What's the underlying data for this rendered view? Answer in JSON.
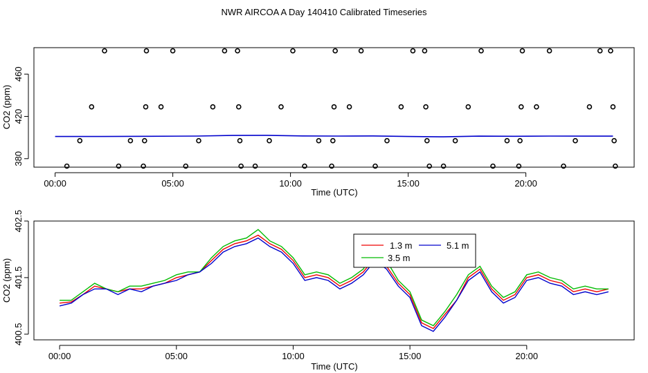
{
  "title": "NWR AIRCOA A  Day 140410  Calibrated Timeseries",
  "chart_data": [
    {
      "type": "scatter",
      "xlabel": "Time (UTC)",
      "ylabel": "CO2 (ppm)",
      "xlim": [
        -0.9,
        24.6
      ],
      "ylim": [
        372,
        485
      ],
      "xticks": [
        0,
        5,
        10,
        15,
        20
      ],
      "xtick_labels": [
        "00:00",
        "05:00",
        "10:00",
        "15:00",
        "20:00"
      ],
      "yticks": [
        380,
        420,
        460
      ],
      "ytick_labels": [
        "380",
        "420",
        "460"
      ],
      "grid": false,
      "legend": "none",
      "points": {
        "name": "",
        "style": "open-circle",
        "color": "#000000",
        "x": [
          0.5,
          1.05,
          1.55,
          2.1,
          2.7,
          3.2,
          3.75,
          3.8,
          3.85,
          3.88,
          4.5,
          5.0,
          5.55,
          6.1,
          6.7,
          7.2,
          7.75,
          7.8,
          7.85,
          7.9,
          8.5,
          9.1,
          9.6,
          10.1,
          10.6,
          11.2,
          11.75,
          11.8,
          11.85,
          11.9,
          12.5,
          13.0,
          13.6,
          14.1,
          14.7,
          15.2,
          15.7,
          15.75,
          15.8,
          15.9,
          16.5,
          17.0,
          17.55,
          18.1,
          18.6,
          19.2,
          19.7,
          19.75,
          19.8,
          19.85,
          20.45,
          21.0,
          21.6,
          22.1,
          22.7,
          23.15,
          23.6,
          23.7,
          23.75,
          23.8
        ],
        "y": [
          373,
          397,
          429,
          482,
          373,
          397,
          373,
          397,
          429,
          482,
          429,
          482,
          373,
          397,
          429,
          482,
          482,
          429,
          397,
          373,
          373,
          397,
          429,
          482,
          373,
          397,
          373,
          397,
          429,
          482,
          429,
          482,
          373,
          397,
          429,
          482,
          482,
          429,
          397,
          373,
          373,
          397,
          429,
          482,
          373,
          397,
          373,
          397,
          429,
          482,
          429,
          482,
          373,
          397,
          429,
          482,
          482,
          429,
          397,
          373
        ]
      },
      "series": [
        {
          "name": "",
          "color": "#0000cc",
          "x": [
            0,
            2,
            4,
            6,
            7.5,
            9,
            10.5,
            12,
            13.5,
            15,
            16.5,
            18,
            19.5,
            21,
            22.5,
            23.7
          ],
          "y": [
            401,
            401,
            401.2,
            401.4,
            402,
            402.1,
            401.5,
            401.4,
            401.5,
            401,
            400.7,
            401.3,
            401.2,
            401.4,
            401.3,
            401.3
          ]
        }
      ]
    },
    {
      "type": "line",
      "xlabel": "Time (UTC)",
      "ylabel": "CO2 (ppm)",
      "xlim": [
        -1.1,
        24.6
      ],
      "ylim": [
        400.4,
        402.5
      ],
      "xticks": [
        0,
        5,
        10,
        15,
        20
      ],
      "xtick_labels": [
        "00:00",
        "05:00",
        "10:00",
        "15:00",
        "20:00"
      ],
      "yticks": [
        400.5,
        401.5,
        402.5
      ],
      "ytick_labels": [
        "400.5",
        "401.5",
        "402.5"
      ],
      "grid": false,
      "legend": "top-center",
      "x": [
        0,
        0.5,
        1,
        1.5,
        2,
        2.5,
        3,
        3.5,
        4,
        4.5,
        5,
        5.5,
        6,
        6.5,
        7,
        7.5,
        8,
        8.5,
        9,
        9.5,
        10,
        10.5,
        11,
        11.5,
        12,
        12.5,
        13,
        13.5,
        14,
        14.5,
        15,
        15.5,
        16,
        16.5,
        17,
        17.5,
        18,
        18.5,
        19,
        19.5,
        20,
        20.5,
        21,
        21.5,
        22,
        22.5,
        23,
        23.5
      ],
      "series": [
        {
          "name": "1.3 m",
          "color": "#ee0000",
          "values": [
            401.05,
            401.07,
            401.2,
            401.35,
            401.3,
            401.25,
            401.3,
            401.3,
            401.35,
            401.4,
            401.5,
            401.55,
            401.6,
            401.8,
            402.0,
            402.1,
            402.15,
            402.25,
            402.1,
            402.0,
            401.8,
            401.5,
            401.55,
            401.5,
            401.35,
            401.45,
            401.6,
            401.85,
            401.7,
            401.4,
            401.2,
            400.7,
            400.6,
            400.85,
            401.1,
            401.5,
            401.65,
            401.3,
            401.1,
            401.2,
            401.5,
            401.55,
            401.45,
            401.4,
            401.25,
            401.3,
            401.25,
            401.3
          ]
        },
        {
          "name": "3.5 m",
          "color": "#00bb00",
          "values": [
            401.1,
            401.1,
            401.25,
            401.4,
            401.3,
            401.25,
            401.35,
            401.35,
            401.4,
            401.45,
            401.55,
            401.6,
            401.6,
            401.85,
            402.05,
            402.15,
            402.2,
            402.35,
            402.15,
            402.05,
            401.85,
            401.55,
            401.6,
            401.55,
            401.4,
            401.5,
            401.65,
            401.95,
            401.8,
            401.45,
            401.25,
            400.75,
            400.65,
            400.9,
            401.2,
            401.55,
            401.7,
            401.35,
            401.15,
            401.25,
            401.55,
            401.6,
            401.5,
            401.45,
            401.3,
            401.35,
            401.3,
            401.3
          ]
        },
        {
          "name": "5.1 m",
          "color": "#0000cc",
          "values": [
            401.0,
            401.05,
            401.2,
            401.3,
            401.3,
            401.2,
            401.3,
            401.25,
            401.35,
            401.4,
            401.45,
            401.55,
            401.6,
            401.75,
            401.95,
            402.05,
            402.1,
            402.2,
            402.05,
            401.95,
            401.75,
            401.45,
            401.5,
            401.45,
            401.3,
            401.4,
            401.55,
            401.8,
            401.65,
            401.35,
            401.15,
            400.65,
            400.55,
            400.8,
            401.1,
            401.45,
            401.6,
            401.25,
            401.05,
            401.15,
            401.45,
            401.5,
            401.4,
            401.35,
            401.2,
            401.25,
            401.2,
            401.25
          ]
        }
      ]
    }
  ]
}
